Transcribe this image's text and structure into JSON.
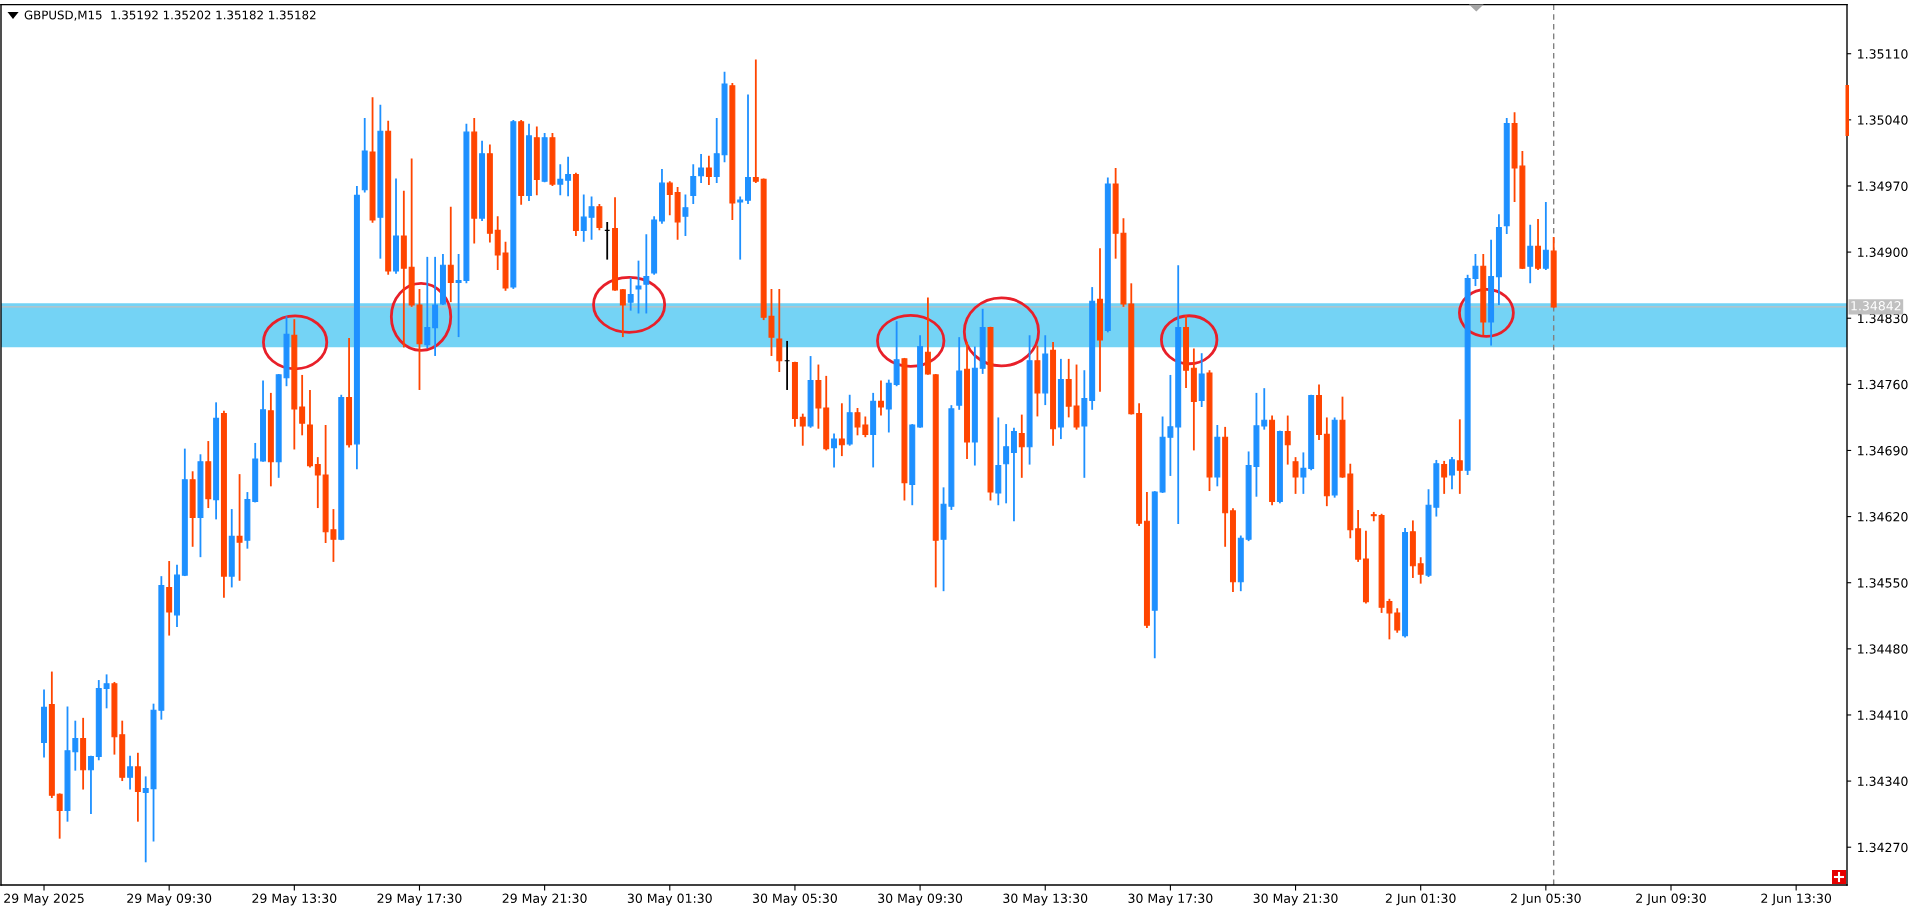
{
  "chart_data": {
    "type": "candlestick",
    "title": "GBPUSD,M15  1.35192 1.35202 1.35182 1.35182",
    "categories": [
      "29 May 2025",
      null,
      null,
      null,
      null,
      null,
      null,
      null,
      null,
      null,
      null,
      null,
      null,
      null,
      null,
      null,
      "29 May 09:30",
      null,
      null,
      null,
      null,
      null,
      null,
      null,
      null,
      null,
      null,
      null,
      null,
      null,
      null,
      null,
      "29 May 13:30",
      null,
      null,
      null,
      null,
      null,
      null,
      null,
      null,
      null,
      null,
      null,
      null,
      null,
      null,
      null,
      "29 May 17:30",
      null,
      null,
      null,
      null,
      null,
      null,
      null,
      null,
      null,
      null,
      null,
      null,
      null,
      null,
      null,
      "29 May 21:30",
      null,
      null,
      null,
      null,
      null,
      null,
      null,
      null,
      null,
      null,
      null,
      null,
      null,
      null,
      null,
      "30 May 01:30",
      null,
      null,
      null,
      null,
      null,
      null,
      null,
      null,
      null,
      null,
      null,
      null,
      null,
      null,
      null,
      "30 May 05:30",
      null,
      null,
      null,
      null,
      null,
      null,
      null,
      null,
      null,
      null,
      null,
      null,
      null,
      null,
      null,
      "30 May 09:30",
      null,
      null,
      null,
      null,
      null,
      null,
      null,
      null,
      null,
      null,
      null,
      null,
      null,
      null,
      null,
      "30 May 13:30",
      null,
      null,
      null,
      null,
      null,
      null,
      null,
      null,
      null,
      null,
      null,
      null,
      null,
      null,
      null,
      "30 May 17:30",
      null,
      null,
      null,
      null,
      null,
      null,
      null,
      null,
      null,
      null,
      null,
      null,
      null,
      null,
      null,
      "30 May 21:30",
      null,
      null,
      null,
      null,
      null,
      null,
      null,
      null,
      null,
      null,
      null,
      null,
      null,
      null,
      null,
      "2 Jun 01:30",
      null,
      null,
      null,
      null,
      null,
      null,
      null,
      null,
      null,
      null,
      null,
      null,
      null,
      null,
      null,
      "2 Jun 05:30",
      null,
      null,
      null,
      null,
      null,
      null,
      null,
      null,
      null,
      null,
      null,
      null,
      null,
      null,
      null,
      "2 Jun 09:30",
      null,
      null,
      null,
      null,
      null,
      null,
      null,
      null,
      null,
      null,
      null,
      null,
      null,
      null,
      null,
      "2 Jun 13:30"
    ],
    "ohlc": [
      [
        1.34381,
        1.34436,
        1.34366,
        1.34418
      ],
      [
        1.34421,
        1.34455,
        1.34323,
        1.34325
      ],
      [
        1.34326,
        1.34326,
        1.3428,
        1.34309
      ],
      [
        1.34309,
        1.34418,
        1.34298,
        1.34372
      ],
      [
        1.34371,
        1.34403,
        1.34352,
        1.34385
      ],
      [
        1.34385,
        1.34406,
        1.34332,
        1.34352
      ],
      [
        1.34352,
        1.34366,
        1.34306,
        1.34366
      ],
      [
        1.34366,
        1.34446,
        1.34363,
        1.34438
      ],
      [
        1.34438,
        1.34452,
        1.34418,
        1.34443
      ],
      [
        1.34443,
        1.34444,
        1.34369,
        1.34387
      ],
      [
        1.34389,
        1.34403,
        1.34341,
        1.34344
      ],
      [
        1.34344,
        1.34366,
        1.34332,
        1.34355
      ],
      [
        1.34355,
        1.34369,
        1.34298,
        1.34329
      ],
      [
        1.34328,
        1.34344,
        1.34255,
        1.34332
      ],
      [
        1.34332,
        1.34421,
        1.34277,
        1.34415
      ],
      [
        1.34415,
        1.34556,
        1.34406,
        1.34547
      ],
      [
        1.34545,
        1.34572,
        1.34495,
        1.34519
      ],
      [
        1.34516,
        1.34568,
        1.34504,
        1.34558
      ],
      [
        1.34558,
        1.34691,
        1.34558,
        1.34659
      ],
      [
        1.34659,
        1.34667,
        1.34589,
        1.34619
      ],
      [
        1.34619,
        1.34685,
        1.34578,
        1.34678
      ],
      [
        1.34678,
        1.34699,
        1.3463,
        1.34639
      ],
      [
        1.34638,
        1.3474,
        1.34618,
        1.34724
      ],
      [
        1.34729,
        1.34731,
        1.34535,
        1.34557
      ],
      [
        1.34557,
        1.34627,
        1.34546,
        1.34599
      ],
      [
        1.34599,
        1.34664,
        1.34553,
        1.34593
      ],
      [
        1.34595,
        1.34645,
        1.34587,
        1.34638
      ],
      [
        1.34636,
        1.34697,
        1.34636,
        1.34681
      ],
      [
        1.34679,
        1.34763,
        1.34679,
        1.34733
      ],
      [
        1.34732,
        1.3475,
        1.34653,
        1.34678
      ],
      [
        1.34678,
        1.3477,
        1.34662,
        1.3477
      ],
      [
        1.34767,
        1.34831,
        1.34759,
        1.34813
      ],
      [
        1.34812,
        1.34828,
        1.34692,
        1.34734
      ],
      [
        1.34736,
        1.34769,
        1.34707,
        1.34719
      ],
      [
        1.34717,
        1.34753,
        1.34673,
        1.34674
      ],
      [
        1.34675,
        1.34682,
        1.3463,
        1.34664
      ],
      [
        1.34664,
        1.34716,
        1.34593,
        1.34604
      ],
      [
        1.34606,
        1.34627,
        1.34573,
        1.34596
      ],
      [
        1.34596,
        1.34748,
        1.34596,
        1.34746
      ],
      [
        1.34746,
        1.34808,
        1.34694,
        1.34696
      ],
      [
        1.34697,
        1.34969,
        1.34671,
        1.3496
      ],
      [
        1.34966,
        1.35041,
        1.34964,
        1.35007
      ],
      [
        1.35006,
        1.35063,
        1.34932,
        1.34934
      ],
      [
        1.34937,
        1.35055,
        1.34894,
        1.35028
      ],
      [
        1.35028,
        1.35038,
        1.34877,
        1.3488
      ],
      [
        1.3488,
        1.34977,
        1.34878,
        1.34917
      ],
      [
        1.34917,
        1.34964,
        1.348,
        1.34883
      ],
      [
        1.34884,
        1.34998,
        1.34843,
        1.34844
      ],
      [
        1.34844,
        1.3486,
        1.34755,
        1.34803
      ],
      [
        1.34802,
        1.34894,
        1.34799,
        1.3482
      ],
      [
        1.3482,
        1.34894,
        1.34791,
        1.34844
      ],
      [
        1.34845,
        1.34897,
        1.34845,
        1.34886
      ],
      [
        1.34886,
        1.34947,
        1.34848,
        1.34868
      ],
      [
        1.34868,
        1.34897,
        1.34811,
        1.3487
      ],
      [
        1.3487,
        1.35035,
        1.34868,
        1.35027
      ],
      [
        1.35027,
        1.35041,
        1.3491,
        1.34936
      ],
      [
        1.34936,
        1.35017,
        1.34934,
        1.35004
      ],
      [
        1.35004,
        1.35013,
        1.34911,
        1.3492
      ],
      [
        1.34923,
        1.34937,
        1.34882,
        1.34897
      ],
      [
        1.34899,
        1.3491,
        1.3486,
        1.34862
      ],
      [
        1.34863,
        1.35039,
        1.34862,
        1.35038
      ],
      [
        1.35038,
        1.35039,
        1.34951,
        1.3496
      ],
      [
        1.3496,
        1.35035,
        1.34955,
        1.35023
      ],
      [
        1.35021,
        1.35032,
        1.34961,
        1.34977
      ],
      [
        1.34975,
        1.35025,
        1.34975,
        1.35021
      ],
      [
        1.35021,
        1.35025,
        1.34971,
        1.34972
      ],
      [
        1.34972,
        1.34992,
        1.34961,
        1.34977
      ],
      [
        1.34976,
        1.35,
        1.3496,
        1.34982
      ],
      [
        1.34982,
        1.34983,
        1.34918,
        1.34923
      ],
      [
        1.34923,
        1.3496,
        1.34912,
        1.34937
      ],
      [
        1.34937,
        1.34958,
        1.34914,
        1.34948
      ],
      [
        1.34948,
        1.3495,
        1.34924,
        1.34926
      ],
      [
        1.34923,
        1.34931,
        1.34893,
        1.34923
      ],
      [
        1.34925,
        1.34957,
        1.3486,
        1.3486
      ],
      [
        1.3486,
        1.3486,
        1.34811,
        1.34844
      ],
      [
        1.34847,
        1.34872,
        1.34839,
        1.34855
      ],
      [
        1.34861,
        1.3489,
        1.34836,
        1.34864
      ],
      [
        1.34866,
        1.34918,
        1.34836,
        1.34874
      ],
      [
        1.34878,
        1.34937,
        1.34877,
        1.34934
      ],
      [
        1.34933,
        1.34987,
        1.34931,
        1.34973
      ],
      [
        1.34973,
        1.34974,
        1.3494,
        1.34961
      ],
      [
        1.34963,
        1.34968,
        1.34914,
        1.34932
      ],
      [
        1.34938,
        1.3496,
        1.34918,
        1.34947
      ],
      [
        1.3496,
        1.34992,
        1.34952,
        1.3498
      ],
      [
        1.34981,
        1.35003,
        1.34974,
        1.34989
      ],
      [
        1.34989,
        1.35001,
        1.34972,
        1.3498
      ],
      [
        1.3498,
        1.35041,
        1.34974,
        1.35004
      ],
      [
        1.35003,
        1.3509,
        1.34996,
        1.35078
      ],
      [
        1.35076,
        1.35078,
        1.34935,
        1.34952
      ],
      [
        1.34953,
        1.34958,
        1.34893,
        1.34955
      ],
      [
        1.34955,
        1.35066,
        1.34952,
        1.34979
      ],
      [
        1.34979,
        1.35103,
        1.34974,
        1.34975
      ],
      [
        1.34977,
        1.34977,
        1.34829,
        1.34831
      ],
      [
        1.34832,
        1.3486,
        1.34791,
        1.3481
      ],
      [
        1.34808,
        1.3486,
        1.34774,
        1.34785
      ],
      [
        1.34785,
        1.34805,
        1.34755,
        1.34785
      ],
      [
        1.34783,
        1.34783,
        1.34716,
        1.34724
      ],
      [
        1.34725,
        1.34728,
        1.34696,
        1.34716
      ],
      [
        1.34716,
        1.34789,
        1.34715,
        1.34764
      ],
      [
        1.34764,
        1.3478,
        1.34714,
        1.34735
      ],
      [
        1.34735,
        1.34768,
        1.34691,
        1.34692
      ],
      [
        1.34693,
        1.34707,
        1.34673,
        1.34702
      ],
      [
        1.34702,
        1.34739,
        1.34685,
        1.34696
      ],
      [
        1.34697,
        1.34748,
        1.34696,
        1.3473
      ],
      [
        1.3473,
        1.34734,
        1.34707,
        1.34715
      ],
      [
        1.34717,
        1.34725,
        1.34705,
        1.34707
      ],
      [
        1.34707,
        1.3475,
        1.34673,
        1.34742
      ],
      [
        1.34742,
        1.34763,
        1.34728,
        1.34736
      ],
      [
        1.34734,
        1.34764,
        1.3471,
        1.34761
      ],
      [
        1.3476,
        1.34826,
        1.34759,
        1.34786
      ],
      [
        1.34787,
        1.34787,
        1.34638,
        1.34656
      ],
      [
        1.34654,
        1.34717,
        1.34633,
        1.34717
      ],
      [
        1.34715,
        1.34811,
        1.34715,
        1.348
      ],
      [
        1.34794,
        1.34851,
        1.34771,
        1.34771
      ],
      [
        1.3477,
        1.3477,
        1.34546,
        1.34595
      ],
      [
        1.34596,
        1.3465,
        1.34542,
        1.34633
      ],
      [
        1.34631,
        1.34737,
        1.34628,
        1.34734
      ],
      [
        1.34738,
        1.34809,
        1.34734,
        1.34774
      ],
      [
        1.34776,
        1.34804,
        1.34682,
        1.34699
      ],
      [
        1.34699,
        1.34799,
        1.34675,
        1.34777
      ],
      [
        1.34777,
        1.34839,
        1.34772,
        1.3482
      ],
      [
        1.3482,
        1.3482,
        1.34638,
        1.34646
      ],
      [
        1.34645,
        1.34724,
        1.34633,
        1.34674
      ],
      [
        1.34676,
        1.34717,
        1.34635,
        1.34694
      ],
      [
        1.34688,
        1.34713,
        1.34616,
        1.3471
      ],
      [
        1.34708,
        1.34727,
        1.34662,
        1.34694
      ],
      [
        1.34694,
        1.34811,
        1.34676,
        1.34785
      ],
      [
        1.34785,
        1.348,
        1.34727,
        1.34751
      ],
      [
        1.34751,
        1.34811,
        1.34739,
        1.34792
      ],
      [
        1.34796,
        1.34804,
        1.34696,
        1.34713
      ],
      [
        1.34715,
        1.34786,
        1.34703,
        1.34765
      ],
      [
        1.34765,
        1.34786,
        1.34726,
        1.34737
      ],
      [
        1.34737,
        1.3478,
        1.34713,
        1.34715
      ],
      [
        1.34716,
        1.34774,
        1.34662,
        1.34745
      ],
      [
        1.34743,
        1.34862,
        1.34734,
        1.34848
      ],
      [
        1.3485,
        1.34903,
        1.34753,
        1.34807
      ],
      [
        1.34817,
        1.34978,
        1.34816,
        1.34972
      ],
      [
        1.34972,
        1.34988,
        1.34894,
        1.3492
      ],
      [
        1.3492,
        1.34935,
        1.34843,
        1.34845
      ],
      [
        1.34845,
        1.34866,
        1.34729,
        1.34729
      ],
      [
        1.34729,
        1.34739,
        1.34611,
        1.34613
      ],
      [
        1.34615,
        1.34645,
        1.34503,
        1.34505
      ],
      [
        1.34521,
        1.34646,
        1.34471,
        1.34646
      ],
      [
        1.34646,
        1.34725,
        1.34646,
        1.34704
      ],
      [
        1.34704,
        1.34769,
        1.34664,
        1.34715
      ],
      [
        1.34715,
        1.34885,
        1.34613,
        1.3482
      ],
      [
        1.3482,
        1.34832,
        1.34757,
        1.34775
      ],
      [
        1.34777,
        1.34797,
        1.34691,
        1.34742
      ],
      [
        1.34743,
        1.34792,
        1.34737,
        1.34771
      ],
      [
        1.34772,
        1.34774,
        1.34648,
        1.34662
      ],
      [
        1.34662,
        1.34716,
        1.34653,
        1.34704
      ],
      [
        1.34704,
        1.34714,
        1.34589,
        1.34624
      ],
      [
        1.34626,
        1.34628,
        1.34541,
        1.34551
      ],
      [
        1.34551,
        1.34599,
        1.34542,
        1.34597
      ],
      [
        1.34596,
        1.34688,
        1.34595,
        1.34674
      ],
      [
        1.34673,
        1.3475,
        1.34642,
        1.34716
      ],
      [
        1.34716,
        1.34755,
        1.34713,
        1.34722
      ],
      [
        1.34722,
        1.34726,
        1.34633,
        1.34636
      ],
      [
        1.34636,
        1.3471,
        1.34635,
        1.3471
      ],
      [
        1.3471,
        1.34726,
        1.34676,
        1.34696
      ],
      [
        1.34678,
        1.34682,
        1.34645,
        1.34662
      ],
      [
        1.34662,
        1.34687,
        1.34645,
        1.34671
      ],
      [
        1.34671,
        1.34748,
        1.3467,
        1.34748
      ],
      [
        1.34748,
        1.34759,
        1.34702,
        1.34707
      ],
      [
        1.34707,
        1.34724,
        1.34632,
        1.34642
      ],
      [
        1.34643,
        1.34724,
        1.34641,
        1.34722
      ],
      [
        1.34722,
        1.34746,
        1.34662,
        1.34662
      ],
      [
        1.34665,
        1.34675,
        1.34598,
        1.34606
      ],
      [
        1.34607,
        1.34626,
        1.34573,
        1.34575
      ],
      [
        1.34575,
        1.34604,
        1.34529,
        1.3453
      ],
      [
        1.34622,
        1.34624,
        1.34616,
        1.34621
      ],
      [
        1.34621,
        1.34622,
        1.34519,
        1.34524
      ],
      [
        1.3453,
        1.34532,
        1.34491,
        1.34518
      ],
      [
        1.34518,
        1.34522,
        1.34498,
        1.345
      ],
      [
        1.34494,
        1.34607,
        1.34493,
        1.34603
      ],
      [
        1.34604,
        1.34615,
        1.34556,
        1.34568
      ],
      [
        1.3457,
        1.34576,
        1.3455,
        1.34559
      ],
      [
        1.34558,
        1.34648,
        1.34557,
        1.34632
      ],
      [
        1.3463,
        1.34679,
        1.34621,
        1.34676
      ],
      [
        1.34675,
        1.34678,
        1.34645,
        1.34662
      ],
      [
        1.34664,
        1.34682,
        1.3465,
        1.3468
      ],
      [
        1.34679,
        1.34722,
        1.34645,
        1.34669
      ],
      [
        1.34669,
        1.34875,
        1.34665,
        1.34872
      ],
      [
        1.34872,
        1.34897,
        1.34865,
        1.34885
      ],
      [
        1.34885,
        1.34897,
        1.34813,
        1.34826
      ],
      [
        1.34826,
        1.34912,
        1.34802,
        1.34874
      ],
      [
        1.34874,
        1.34939,
        1.34845,
        1.34926
      ],
      [
        1.34928,
        1.35041,
        1.3492,
        1.35036
      ],
      [
        1.35036,
        1.35047,
        1.34954,
        1.34989
      ],
      [
        1.34991,
        1.35006,
        1.34883,
        1.34883
      ],
      [
        1.34885,
        1.34928,
        1.34868,
        1.34906
      ],
      [
        1.34906,
        1.34934,
        1.34882,
        1.34883
      ],
      [
        1.34883,
        1.34952,
        1.34882,
        1.34902
      ],
      [
        1.34901,
        1.34915,
        1.34842,
        1.34842
      ],
      null,
      null,
      null,
      null,
      null,
      null,
      null,
      null,
      null,
      null,
      null,
      null,
      null,
      null,
      null,
      null,
      null,
      null,
      null,
      null,
      null,
      null,
      null,
      null,
      null,
      null,
      null,
      null,
      null,
      null,
      null
    ],
    "colors": [
      "#1e90ff",
      "#ff4500",
      "#ff4500",
      "#1e90ff",
      "#1e90ff",
      "#ff4500",
      "#1e90ff",
      "#1e90ff",
      "#1e90ff",
      "#ff4500",
      "#ff4500",
      "#1e90ff",
      "#ff4500",
      "#1e90ff",
      "#1e90ff",
      "#1e90ff",
      "#ff4500",
      "#1e90ff",
      "#1e90ff",
      "#ff4500",
      "#1e90ff",
      "#ff4500",
      "#1e90ff",
      "#ff4500",
      "#1e90ff",
      "#ff4500",
      "#1e90ff",
      "#1e90ff",
      "#1e90ff",
      "#ff4500",
      "#1e90ff",
      "#1e90ff",
      "#ff4500",
      "#ff4500",
      "#ff4500",
      "#ff4500",
      "#ff4500",
      "#ff4500",
      "#1e90ff",
      "#ff4500",
      "#1e90ff",
      "#1e90ff",
      "#ff4500",
      "#1e90ff",
      "#ff4500",
      "#1e90ff",
      "#ff4500",
      "#ff4500",
      "#ff4500",
      "#1e90ff",
      "#1e90ff",
      "#1e90ff",
      "#ff4500",
      "#1e90ff",
      "#1e90ff",
      "#ff4500",
      "#1e90ff",
      "#ff4500",
      "#ff4500",
      "#ff4500",
      "#1e90ff",
      "#ff4500",
      "#1e90ff",
      "#ff4500",
      "#1e90ff",
      "#ff4500",
      "#1e90ff",
      "#1e90ff",
      "#ff4500",
      "#1e90ff",
      "#1e90ff",
      "#ff4500",
      "#000000",
      "#ff4500",
      "#ff4500",
      "#1e90ff",
      "#1e90ff",
      "#1e90ff",
      "#1e90ff",
      "#1e90ff",
      "#ff4500",
      "#ff4500",
      "#1e90ff",
      "#1e90ff",
      "#1e90ff",
      "#ff4500",
      "#1e90ff",
      "#1e90ff",
      "#ff4500",
      "#1e90ff",
      "#1e90ff",
      "#ff4500",
      "#ff4500",
      "#ff4500",
      "#ff4500",
      "#000000",
      "#ff4500",
      "#ff4500",
      "#1e90ff",
      "#ff4500",
      "#ff4500",
      "#1e90ff",
      "#ff4500",
      "#1e90ff",
      "#ff4500",
      "#ff4500",
      "#1e90ff",
      "#ff4500",
      "#1e90ff",
      "#1e90ff",
      "#ff4500",
      "#1e90ff",
      "#1e90ff",
      "#ff4500",
      "#ff4500",
      "#1e90ff",
      "#1e90ff",
      "#1e90ff",
      "#ff4500",
      "#1e90ff",
      "#1e90ff",
      "#ff4500",
      "#1e90ff",
      "#1e90ff",
      "#1e90ff",
      "#ff4500",
      "#1e90ff",
      "#ff4500",
      "#1e90ff",
      "#ff4500",
      "#1e90ff",
      "#ff4500",
      "#ff4500",
      "#1e90ff",
      "#1e90ff",
      "#ff4500",
      "#1e90ff",
      "#ff4500",
      "#ff4500",
      "#ff4500",
      "#ff4500",
      "#ff4500",
      "#1e90ff",
      "#1e90ff",
      "#1e90ff",
      "#1e90ff",
      "#ff4500",
      "#ff4500",
      "#1e90ff",
      "#ff4500",
      "#1e90ff",
      "#ff4500",
      "#ff4500",
      "#1e90ff",
      "#1e90ff",
      "#1e90ff",
      "#1e90ff",
      "#ff4500",
      "#1e90ff",
      "#ff4500",
      "#ff4500",
      "#1e90ff",
      "#1e90ff",
      "#ff4500",
      "#ff4500",
      "#1e90ff",
      "#ff4500",
      "#ff4500",
      "#ff4500",
      "#ff4500",
      "#ff4500",
      "#ff4500",
      "#ff4500",
      "#ff4500",
      "#1e90ff",
      "#ff4500",
      "#ff4500",
      "#1e90ff",
      "#1e90ff",
      "#ff4500",
      "#1e90ff",
      "#ff4500",
      "#1e90ff",
      "#1e90ff",
      "#ff4500",
      "#1e90ff",
      "#1e90ff",
      "#1e90ff",
      "#ff4500",
      "#ff4500",
      "#1e90ff",
      "#ff4500",
      "#1e90ff",
      "#ff4500",
      null,
      null,
      null,
      null,
      null,
      null,
      null,
      null,
      null,
      null,
      null,
      null,
      null,
      null,
      null,
      null,
      null,
      null,
      null,
      null,
      null,
      null,
      null,
      null,
      null,
      null,
      null,
      null,
      null,
      null,
      null
    ],
    "ylim": [
      1.3423,
      1.35162
    ],
    "yticks": [
      {
        "value": 1.3427,
        "label": "1.34270"
      },
      {
        "value": 1.3434,
        "label": "1.34340"
      },
      {
        "value": 1.3441,
        "label": "1.34410"
      },
      {
        "value": 1.3448,
        "label": "1.34480"
      },
      {
        "value": 1.3455,
        "label": "1.34550"
      },
      {
        "value": 1.3462,
        "label": "1.34620"
      },
      {
        "value": 1.3469,
        "label": "1.34690"
      },
      {
        "value": 1.3476,
        "label": "1.34760"
      },
      {
        "value": 1.3483,
        "label": "1.34830"
      },
      {
        "value": 1.349,
        "label": "1.34900"
      },
      {
        "value": 1.3497,
        "label": "1.34970"
      },
      {
        "value": 1.3504,
        "label": "1.35040"
      },
      {
        "value": 1.3511,
        "label": "1.35110"
      }
    ],
    "bands": [
      {
        "axis": "y",
        "from": 1.348,
        "to": 1.34845,
        "color": "#74d3f5"
      }
    ],
    "ref_lines": [
      {
        "axis": "y",
        "value": 1.34842,
        "label": "1.34842",
        "color": "#c0c0c0"
      },
      {
        "axis": "x",
        "color": "#808080",
        "line_style": "dashed"
      }
    ]
  }
}
